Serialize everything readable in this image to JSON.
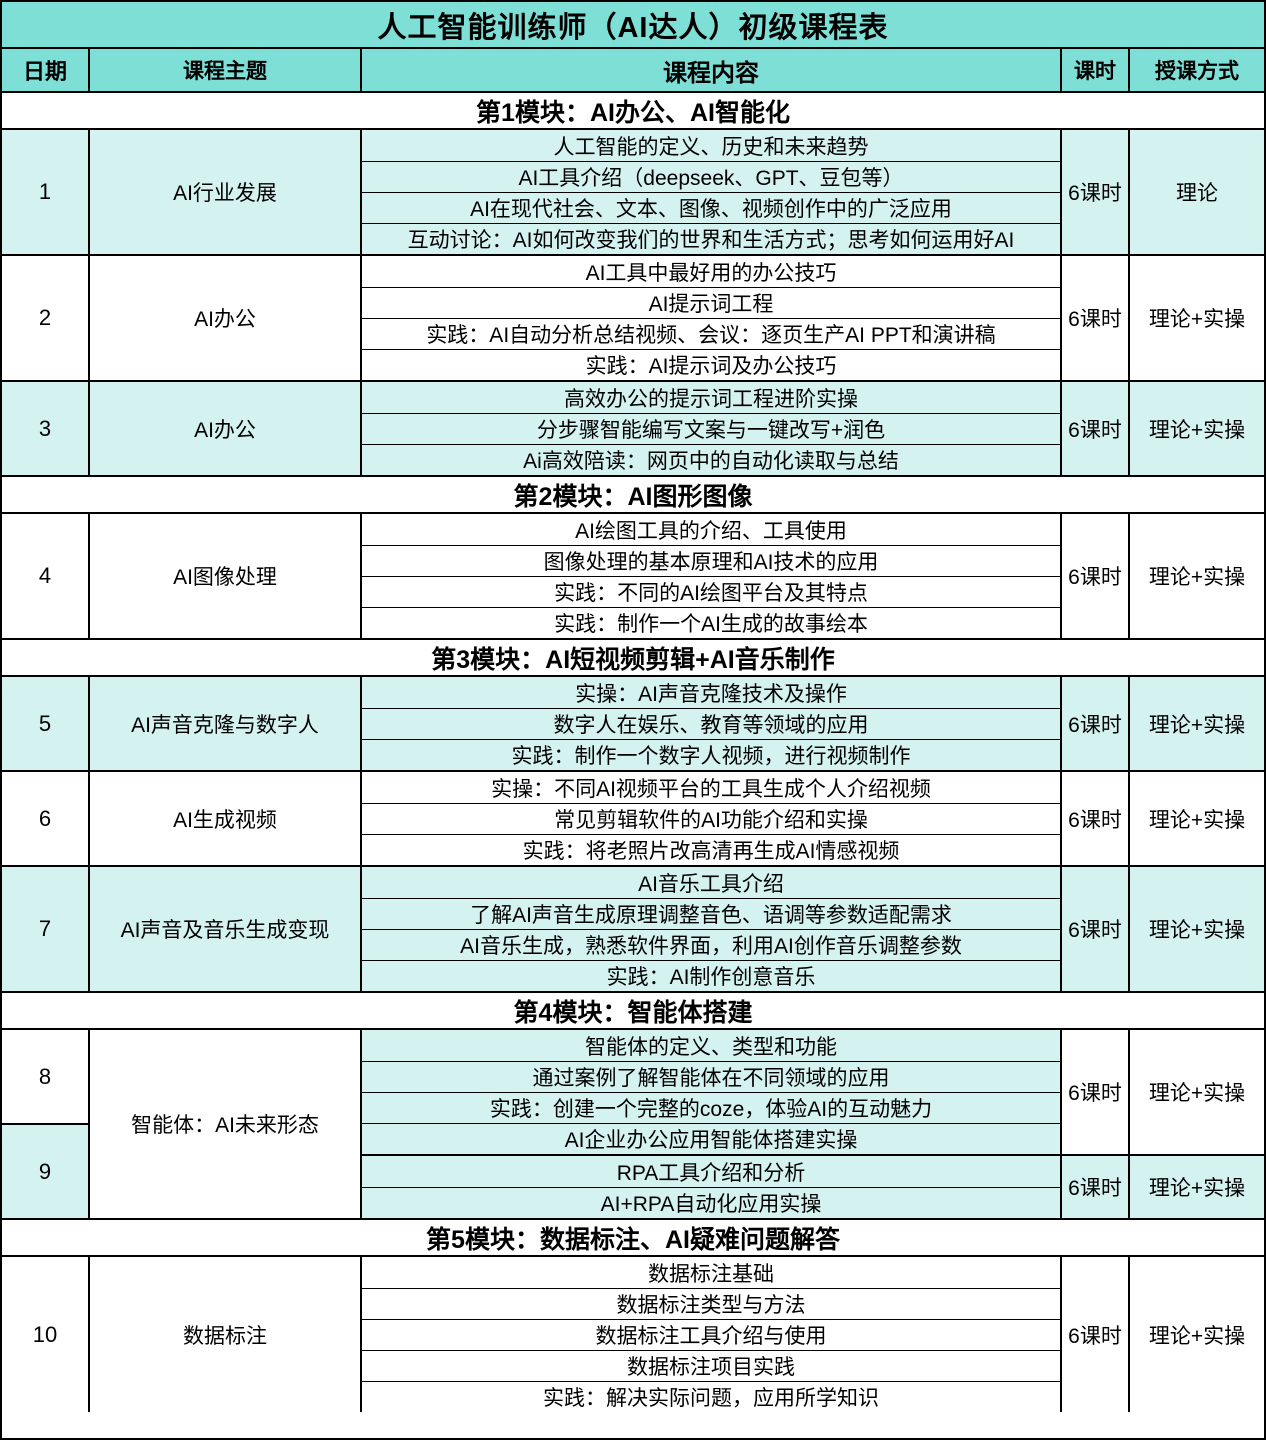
{
  "title": "人工智能训练师（AI达人）初级课程表",
  "columns": [
    "日期",
    "课程主题",
    "课程内容",
    "课时",
    "授课方式"
  ],
  "colors": {
    "header_bg": "#7EDFD6",
    "row_cyan": "#D3F2F0",
    "row_white": "#FFFFFF",
    "border": "#000000"
  },
  "blocks": [
    {
      "type": "module",
      "label": "第1模块：AI办公、AI智能化"
    },
    {
      "type": "row",
      "date": "1",
      "topic": "AI行业发展",
      "tone": "cyan",
      "contents": [
        "人工智能的定义、历史和未来趋势",
        "AI工具介绍（deepseek、GPT、豆包等）",
        "AI在现代社会、文本、图像、视频创作中的广泛应用",
        "互动讨论：AI如何改变我们的世界和生活方式；思考如何运用好AI"
      ],
      "hours": "6课时",
      "method": "理论"
    },
    {
      "type": "row",
      "date": "2",
      "topic": "AI办公",
      "tone": "white",
      "contents": [
        "AI工具中最好用的办公技巧",
        "AI提示词工程",
        "实践：AI自动分析总结视频、会议：逐页生产AI PPT和演讲稿",
        "实践：AI提示词及办公技巧"
      ],
      "hours": "6课时",
      "method": "理论+实操"
    },
    {
      "type": "row",
      "date": "3",
      "topic": "AI办公",
      "tone": "cyan",
      "contents": [
        "高效办公的提示词工程进阶实操",
        "分步骤智能编写文案与一键改写+润色",
        "Ai高效陪读：网页中的自动化读取与总结"
      ],
      "hours": "6课时",
      "method": "理论+实操"
    },
    {
      "type": "module",
      "label": "第2模块：AI图形图像"
    },
    {
      "type": "row",
      "date": "4",
      "topic": "AI图像处理",
      "tone": "white",
      "contents": [
        "AI绘图工具的介绍、工具使用",
        "图像处理的基本原理和AI技术的应用",
        "实践：不同的AI绘图平台及其特点",
        "实践：制作一个AI生成的故事绘本"
      ],
      "hours": "6课时",
      "method": "理论+实操"
    },
    {
      "type": "module",
      "label": "第3模块：AI短视频剪辑+AI音乐制作"
    },
    {
      "type": "row",
      "date": "5",
      "topic": "AI声音克隆与数字人",
      "tone": "cyan",
      "contents": [
        "实操：AI声音克隆技术及操作",
        "数字人在娱乐、教育等领域的应用",
        "实践：制作一个数字人视频，进行视频制作"
      ],
      "hours": "6课时",
      "method": "理论+实操"
    },
    {
      "type": "row",
      "date": "6",
      "topic": "AI生成视频",
      "tone": "white",
      "contents": [
        "实操：不同AI视频平台的工具生成个人介绍视频",
        "常见剪辑软件的AI功能介绍和实操",
        "实践：将老照片改高清再生成AI情感视频"
      ],
      "hours": "6课时",
      "method": "理论+实操"
    },
    {
      "type": "row",
      "date": "7",
      "topic": "AI声音及音乐生成变现",
      "tone": "cyan",
      "contents": [
        "AI音乐工具介绍",
        "了解AI声音生成原理调整音色、语调等参数适配需求",
        "AI音乐生成，熟悉软件界面，利用AI创作音乐调整参数",
        "实践：AI制作创意音乐"
      ],
      "hours": "6课时",
      "method": "理论+实操"
    },
    {
      "type": "module",
      "label": "第4模块：智能体搭建"
    },
    {
      "type": "pair",
      "topic": "智能体：AI未来形态",
      "topic_tone": "white",
      "rows": [
        {
          "date": "8",
          "tone": "white",
          "content_tone": "cyan",
          "contents": [
            "智能体的定义、类型和功能",
            "通过案例了解智能体在不同领域的应用",
            "实践：创建一个完整的coze，体验AI的互动魅力",
            "AI企业办公应用智能体搭建实操"
          ],
          "hours": "6课时",
          "method": "理论+实操"
        },
        {
          "date": "9",
          "tone": "cyan",
          "content_tone": "cyan",
          "contents": [
            "RPA工具介绍和分析",
            "AI+RPA自动化应用实操"
          ],
          "hours": "6课时",
          "method": "理论+实操"
        }
      ]
    },
    {
      "type": "module",
      "label": "第5模块：数据标注、AI疑难问题解答"
    },
    {
      "type": "row",
      "date": "10",
      "topic": "数据标注",
      "tone": "white",
      "contents": [
        "数据标注基础",
        "数据标注类型与方法",
        "数据标注工具介绍与使用",
        "数据标注项目实践",
        "实践：解决实际问题，应用所学知识"
      ],
      "hours": "6课时",
      "method": "理论+实操"
    }
  ]
}
